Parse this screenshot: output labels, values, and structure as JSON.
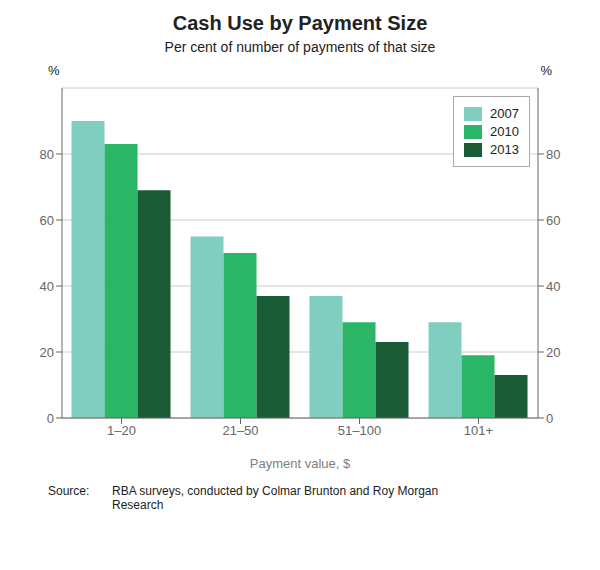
{
  "chart_data": {
    "type": "bar",
    "title": "Cash Use by Payment Size",
    "subtitle": "Per cent of number of payments of that size",
    "categories": [
      "1–20",
      "21–50",
      "51–100",
      "101+"
    ],
    "series": [
      {
        "name": "2007",
        "color": "#80CEC0",
        "values": [
          90,
          55,
          37,
          29
        ]
      },
      {
        "name": "2010",
        "color": "#2BB566",
        "values": [
          83,
          50,
          29,
          19
        ]
      },
      {
        "name": "2013",
        "color": "#1A5C35",
        "values": [
          69,
          37,
          23,
          13
        ]
      }
    ],
    "xlabel": "Payment value, $",
    "ylabel": "%",
    "y2label": "%",
    "ylim": [
      0,
      100
    ],
    "yticks": [
      0,
      20,
      40,
      60,
      80
    ],
    "y2lim": [
      0,
      100
    ],
    "y2ticks": [
      0,
      20,
      40,
      60,
      80
    ],
    "grid": true,
    "legend": "upper right",
    "annotations": [
      "Source:",
      "RBA surveys, conducted by Colmar Brunton and Roy Morgan",
      "Research"
    ]
  }
}
